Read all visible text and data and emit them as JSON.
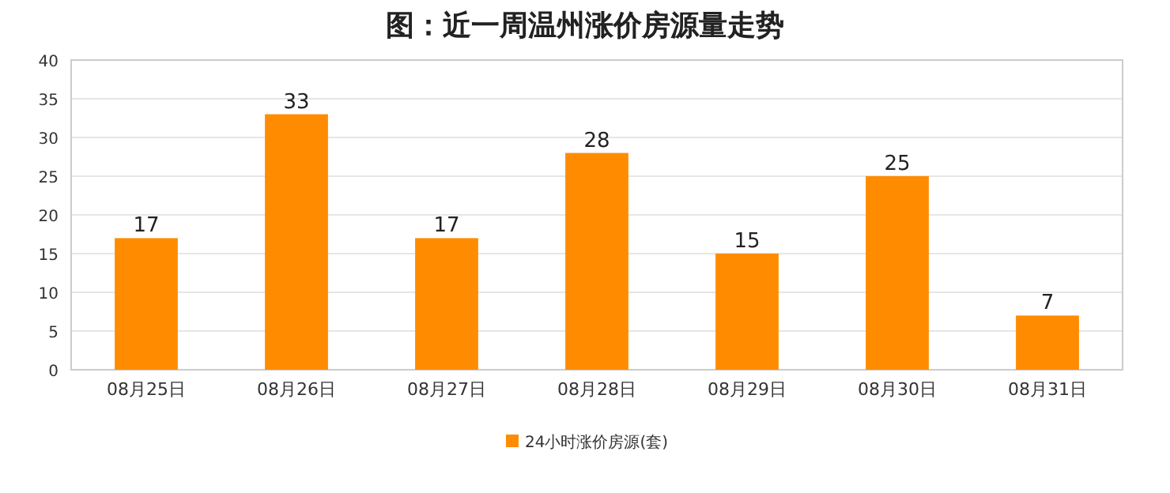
{
  "chart_data": {
    "type": "bar",
    "title": "图：近一周温州涨价房源量走势",
    "categories": [
      "08月25日",
      "08月26日",
      "08月27日",
      "08月28日",
      "08月29日",
      "08月30日",
      "08月31日"
    ],
    "series": [
      {
        "name": "24小时涨价房源(套)",
        "color": "#ff8c00",
        "values": [
          17,
          33,
          17,
          28,
          15,
          25,
          7
        ]
      }
    ],
    "ylim": [
      0,
      40
    ],
    "yticks": [
      0,
      5,
      10,
      15,
      20,
      25,
      30,
      35,
      40
    ],
    "grid": "y",
    "legend": "bottom",
    "data_labels": true
  }
}
